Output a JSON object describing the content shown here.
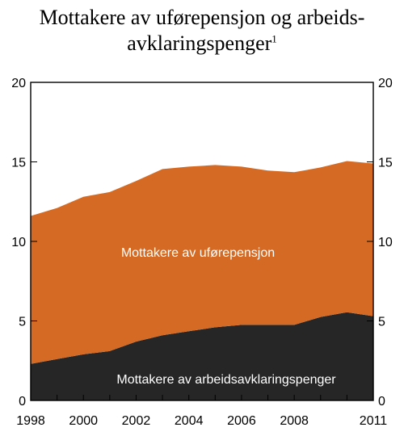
{
  "chart_data": {
    "type": "area",
    "stacked": true,
    "title_line1": "Mottakere av uførepensjon og arbeids-",
    "title_line2": "avklaringspenger",
    "title_footnote": "1",
    "xlabel": "",
    "ylabel": "",
    "x": [
      1998,
      1999,
      2000,
      2001,
      2002,
      2003,
      2004,
      2005,
      2006,
      2007,
      2008,
      2009,
      2010,
      2011
    ],
    "x_tick_labels": [
      "1998",
      "2000",
      "2002",
      "2004",
      "2006",
      "2008",
      "2011"
    ],
    "x_tick_values": [
      1998,
      2000,
      2002,
      2004,
      2006,
      2008,
      2011
    ],
    "y_tick_labels": [
      "0",
      "5",
      "10",
      "15",
      "20"
    ],
    "y_tick_values": [
      0,
      5,
      10,
      15,
      20
    ],
    "xlim": [
      1998,
      2011
    ],
    "ylim": [
      0,
      20
    ],
    "grid": false,
    "series": [
      {
        "name": "Mottakere av arbeidsavklaringspenger",
        "color": "#262626",
        "values": [
          2.3,
          2.6,
          2.9,
          3.1,
          3.7,
          4.1,
          4.35,
          4.6,
          4.75,
          4.75,
          4.75,
          5.25,
          5.55,
          5.3
        ]
      },
      {
        "name": "Mottakere av uførepensjon",
        "color": "#d46a24",
        "values": [
          9.3,
          9.5,
          9.9,
          10.0,
          10.1,
          10.45,
          10.35,
          10.2,
          9.95,
          9.7,
          9.6,
          9.4,
          9.5,
          9.6
        ]
      }
    ]
  }
}
